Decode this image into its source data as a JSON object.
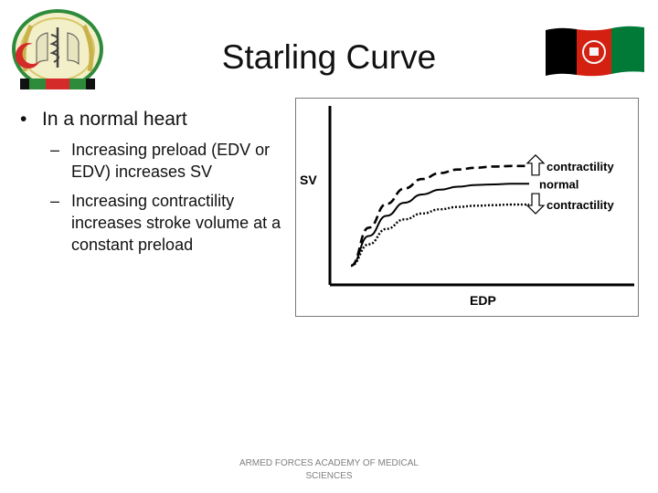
{
  "slide": {
    "title": "Starling Curve",
    "bullets": [
      {
        "text": "In a normal heart"
      },
      {
        "text": "Increasing preload (EDV or EDV) increases SV"
      },
      {
        "text": "Increasing contractility increases stroke volume at a constant preload"
      }
    ],
    "footer": "ARMED FORCES ACADEMY OF MEDICAL SCIENCES"
  },
  "logo": {
    "icon": "academy-emblem",
    "colors": {
      "green": "#2e8b3a",
      "gold": "#d7c86a",
      "red": "#d42a2a"
    }
  },
  "flag": {
    "icon": "afghanistan-flag",
    "colors": {
      "black": "#000000",
      "red": "#d32011",
      "green": "#007a36"
    }
  },
  "chart_data": {
    "type": "line",
    "xlabel": "EDP",
    "ylabel": "SV",
    "grid": false,
    "series": [
      {
        "name": "contractility",
        "arrow": "up",
        "style": "dashed",
        "x": [
          0,
          10,
          20,
          30,
          40,
          50,
          60,
          70,
          80,
          90,
          100
        ],
        "y": [
          0,
          32,
          52,
          65,
          73,
          78,
          81,
          82.5,
          83.5,
          84,
          84
        ]
      },
      {
        "name": "normal",
        "style": "solid",
        "x": [
          0,
          10,
          20,
          30,
          40,
          50,
          60,
          70,
          80,
          90,
          100
        ],
        "y": [
          0,
          25,
          42,
          53,
          60,
          64,
          66.5,
          68,
          68.5,
          69,
          69
        ]
      },
      {
        "name": "contractility",
        "arrow": "down",
        "style": "dotted",
        "x": [
          0,
          10,
          20,
          30,
          40,
          50,
          60,
          70,
          80,
          90,
          100
        ],
        "y": [
          0,
          18,
          31,
          39,
          44,
          47.5,
          49.5,
          50.5,
          51,
          51.5,
          51.5
        ]
      }
    ]
  }
}
